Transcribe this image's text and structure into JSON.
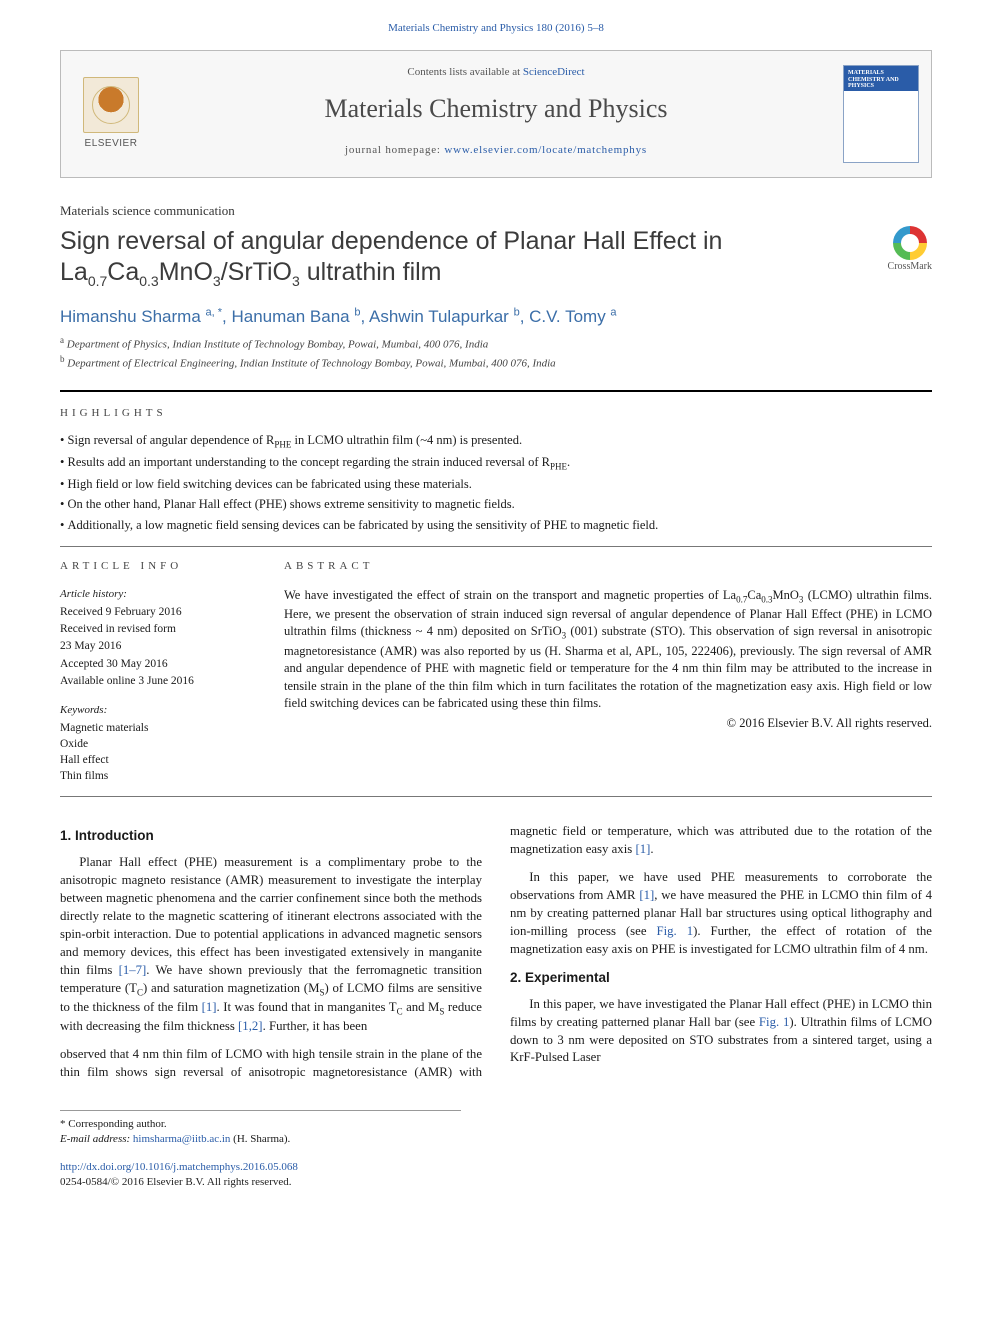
{
  "header": {
    "journal_ref": "Materials Chemistry and Physics 180 (2016) 5–8",
    "sd_prefix": "Contents lists available at ",
    "sd_link": "ScienceDirect",
    "journal_name": "Materials Chemistry and Physics",
    "homepage_prefix": "journal homepage: ",
    "homepage_url": "www.elsevier.com/locate/matchemphys",
    "elsevier_label": "ELSEVIER",
    "cover_title": "MATERIALS CHEMISTRY AND PHYSICS"
  },
  "article": {
    "type": "Materials science communication",
    "title_html": "Sign reversal of angular dependence of Planar Hall Effect in La<sub>0.7</sub>Ca<sub>0.3</sub>MnO<sub>3</sub>/SrTiO<sub>3</sub> ultrathin film",
    "crossmark": "CrossMark",
    "authors": [
      {
        "name": "Himanshu Sharma",
        "sup": "a, *"
      },
      {
        "name": "Hanuman Bana",
        "sup": "b"
      },
      {
        "name": "Ashwin Tulapurkar",
        "sup": "b"
      },
      {
        "name": "C.V. Tomy",
        "sup": "a"
      }
    ],
    "affils": [
      {
        "sup": "a",
        "text": "Department of Physics, Indian Institute of Technology Bombay, Powai, Mumbai, 400 076, India"
      },
      {
        "sup": "b",
        "text": "Department of Electrical Engineering, Indian Institute of Technology Bombay, Powai, Mumbai, 400 076, India"
      }
    ]
  },
  "highlights": {
    "heading": "HIGHLIGHTS",
    "items": [
      "Sign reversal of angular dependence of R<sub>PHE</sub> in LCMO ultrathin film (~4 nm) is presented.",
      "Results add an important understanding to the concept regarding the strain induced reversal of R<sub>PHE</sub>.",
      "High field or low field switching devices can be fabricated using these materials.",
      "On the other hand, Planar Hall effect (PHE) shows extreme sensitivity to magnetic fields.",
      "Additionally, a low magnetic field sensing devices can be fabricated by using the sensitivity of PHE to magnetic field."
    ]
  },
  "info": {
    "heading": "ARTICLE INFO",
    "history_heading": "Article history:",
    "history": [
      "Received 9 February 2016",
      "Received in revised form",
      "23 May 2016",
      "Accepted 30 May 2016",
      "Available online 3 June 2016"
    ],
    "keywords_heading": "Keywords:",
    "keywords": [
      "Magnetic materials",
      "Oxide",
      "Hall effect",
      "Thin films"
    ]
  },
  "abstract": {
    "heading": "ABSTRACT",
    "text_html": "We have investigated the effect of strain on the transport and magnetic properties of La<sub>0.7</sub>Ca<sub>0.3</sub>MnO<sub>3</sub> (LCMO) ultrathin films. Here, we present the observation of strain induced sign reversal of angular dependence of Planar Hall Effect (PHE) in LCMO ultrathin films (thickness ~ 4 nm) deposited on SrTiO<sub>3</sub> (001) substrate (STO). This observation of sign reversal in anisotropic magnetoresistance (AMR) was also reported by us (H. Sharma et al, APL, 105, 222406), previously. The sign reversal of AMR and angular dependence of PHE with magnetic field or temperature for the 4 nm thin film may be attributed to the increase in tensile strain in the plane of the thin film which in turn facilitates the rotation of the magnetization easy axis. High field or low field switching devices can be fabricated using these thin films.",
    "copyright": "© 2016 Elsevier B.V. All rights reserved."
  },
  "sections": {
    "intro_heading": "1. Introduction",
    "exp_heading": "2. Experimental",
    "intro_p1_html": "Planar Hall effect (PHE) measurement is a complimentary probe to the anisotropic magneto resistance (AMR) measurement to investigate the interplay between magnetic phenomena and the carrier confinement since both the methods directly relate to the magnetic scattering of itinerant electrons associated with the spin-orbit interaction. Due to potential applications in advanced magnetic sensors and memory devices, this effect has been investigated extensively in manganite thin films <a class=\"ref\">[1–7]</a>. We have shown previously that the ferromagnetic transition temperature (T<sub>C</sub>) and saturation magnetization (M<sub>S</sub>) of LCMO films are sensitive to the thickness of the film <a class=\"ref\">[1]</a>. It was found that in manganites T<sub>C</sub> and M<sub>S</sub> reduce with decreasing the film thickness <a class=\"ref\">[1,2]</a>. Further, it has been",
    "intro_p1b_html": "observed that 4 nm thin film of LCMO with high tensile strain in the plane of the thin film shows sign reversal of anisotropic magnetoresistance (AMR) with magnetic field or temperature, which was attributed due to the rotation of the magnetization easy axis <a class=\"ref\">[1]</a>.",
    "intro_p2_html": "In this paper, we have used PHE measurements to corroborate the observations from AMR <a class=\"ref\">[1]</a>, we have measured the PHE in LCMO thin film of 4 nm by creating patterned planar Hall bar structures using optical lithography and ion-milling process (see <a class=\"ref\">Fig. 1</a>). Further, the effect of rotation of the magnetization easy axis on PHE is investigated for LCMO ultrathin film of 4 nm.",
    "exp_p1_html": "In this paper, we have investigated the Planar Hall effect (PHE) in LCMO thin films by creating patterned planar Hall bar (see <a class=\"ref\">Fig. 1</a>). Ultrathin films of LCMO down to 3 nm were deposited on STO substrates from a sintered target, using a KrF-Pulsed Laser"
  },
  "footnotes": {
    "corr": "* Corresponding author.",
    "email_label": "E-mail address: ",
    "email": "himsharma@iitb.ac.in",
    "email_suffix": " (H. Sharma).",
    "doi_url": "http://dx.doi.org/10.1016/j.matchemphys.2016.05.068",
    "issn_line": "0254-0584/© 2016 Elsevier B.V. All rights reserved."
  },
  "colors": {
    "link": "#2a5ca8",
    "heading": "#3b3b3b",
    "rule": "#000"
  }
}
